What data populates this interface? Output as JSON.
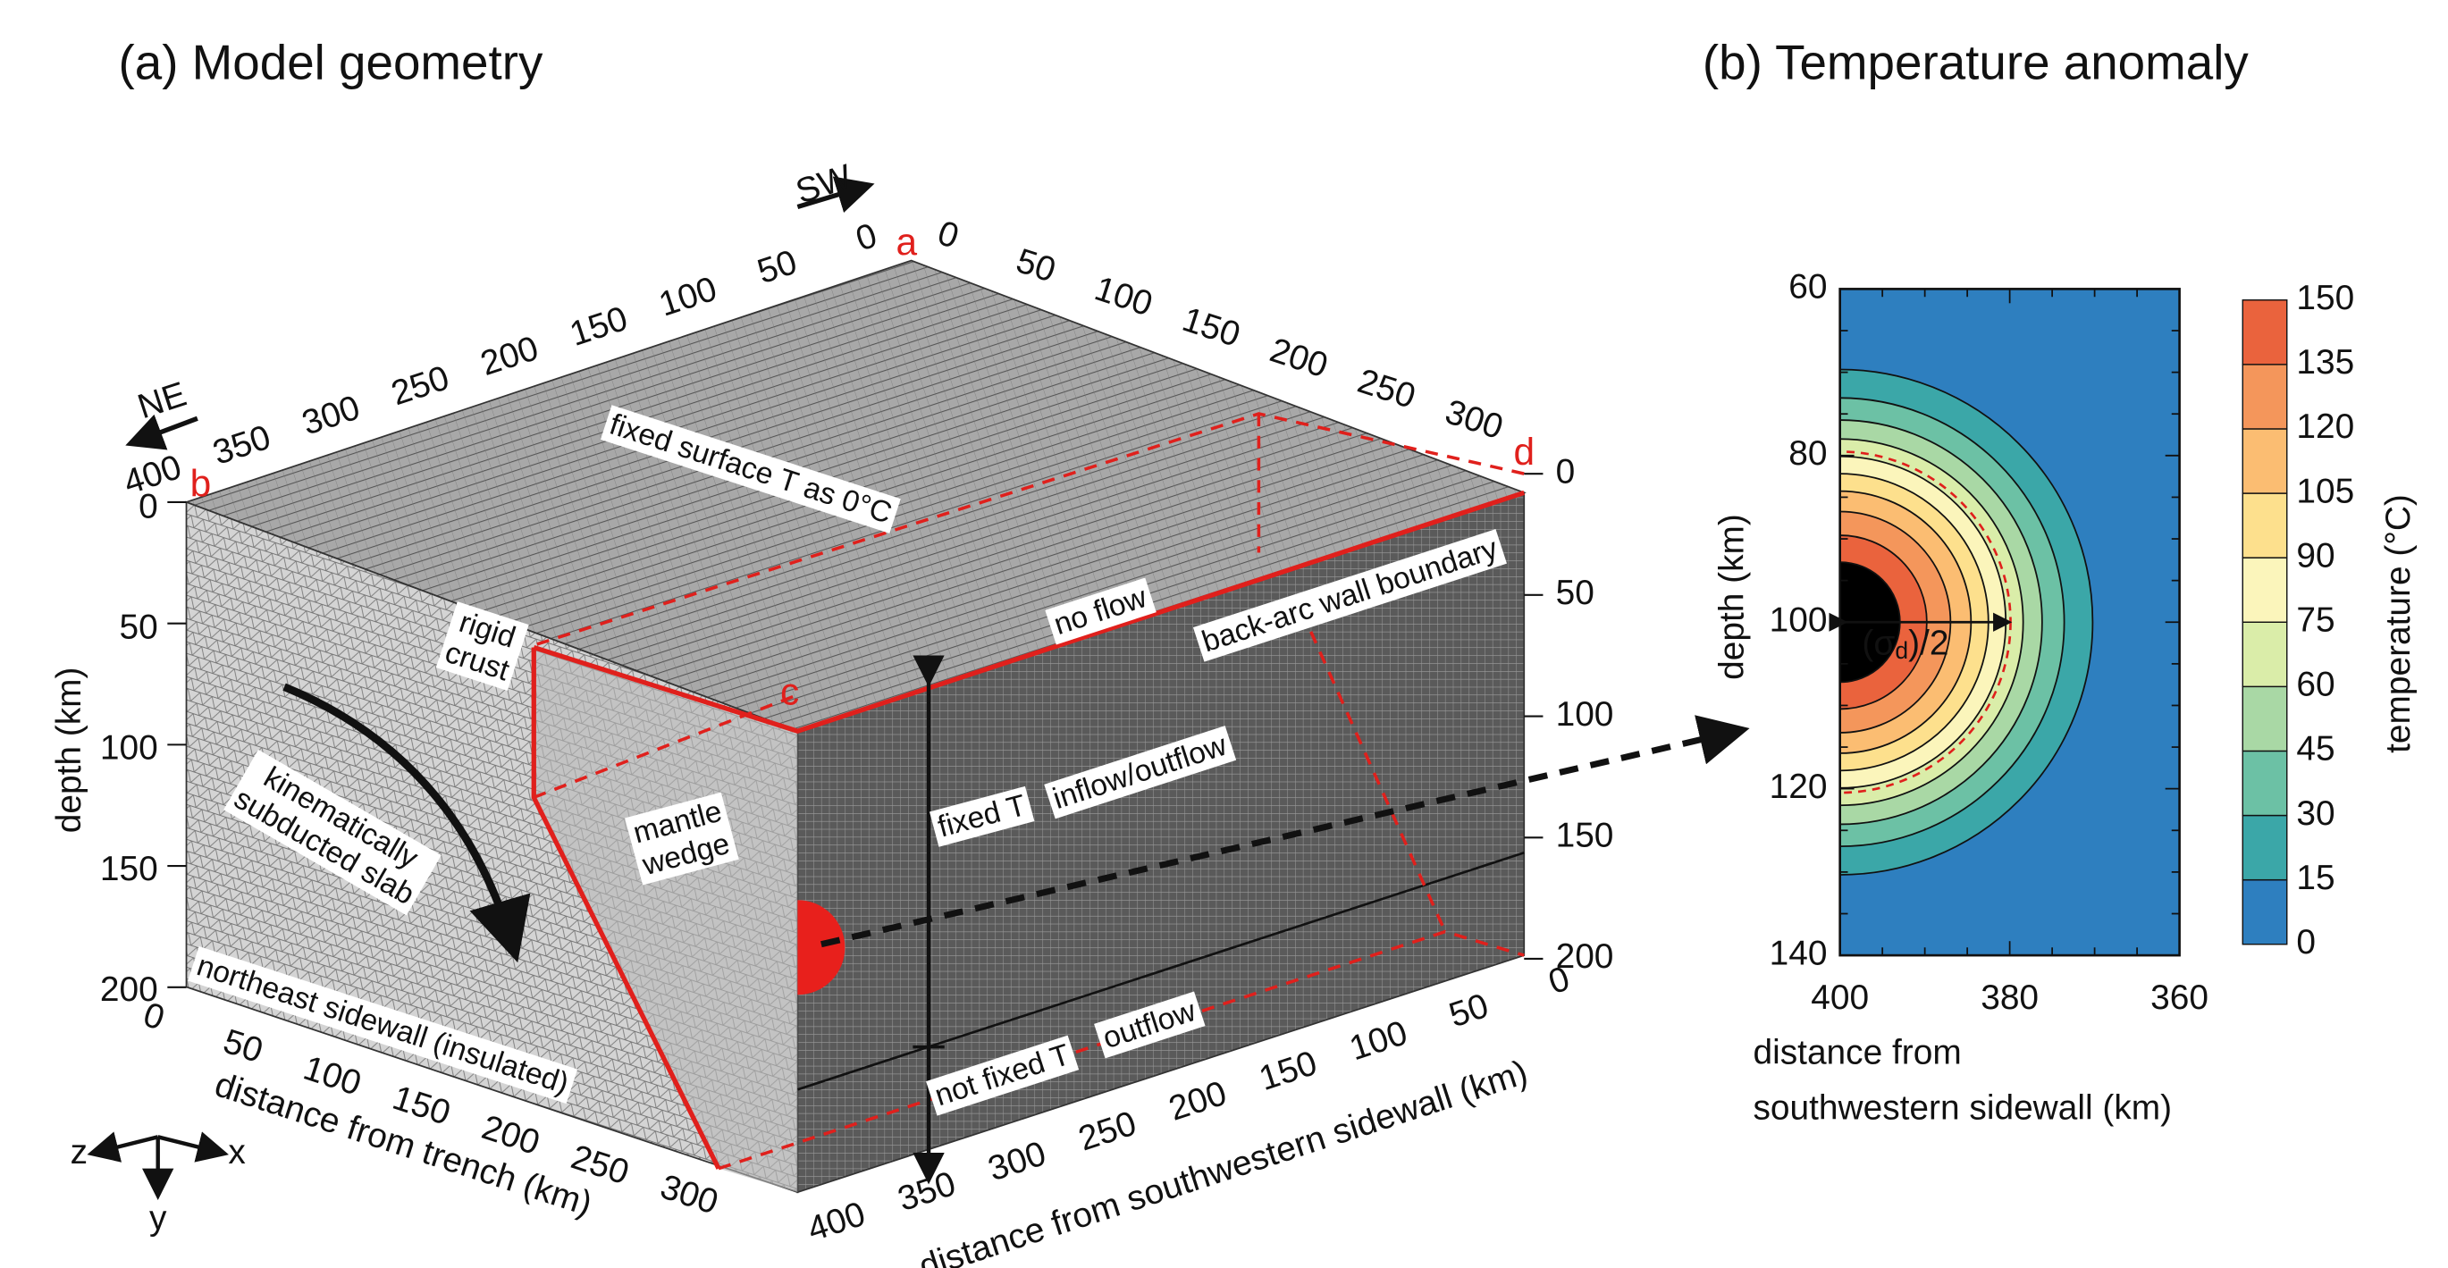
{
  "panel_a": {
    "title": "(a) Model geometry",
    "directions": {
      "sw": "SW",
      "ne": "NE"
    },
    "corners": {
      "a": "a",
      "b": "b",
      "c": "c",
      "d": "d"
    },
    "top_ticks_ne": [
      "400",
      "350",
      "300",
      "250",
      "200",
      "150",
      "100",
      "50",
      "0"
    ],
    "top_ticks_sw": [
      "0",
      "50",
      "100",
      "150",
      "200",
      "250",
      "300"
    ],
    "depth_ticks_left": [
      "0",
      "50",
      "100",
      "150",
      "200"
    ],
    "depth_ticks_right": [
      "0",
      "50",
      "100",
      "150",
      "200"
    ],
    "trench_ticks": [
      "0",
      "50",
      "100",
      "150",
      "200",
      "250",
      "300"
    ],
    "sidewall_ticks": [
      "400",
      "350",
      "300",
      "250",
      "200",
      "150",
      "100",
      "50",
      "0"
    ],
    "axis_labels": {
      "depth": "depth (km)",
      "trench": "distance from trench (km)",
      "sidewall": "distance from southwestern sidewall (km)"
    },
    "annotations": [
      [
        "fixed surface T as 0°C"
      ],
      [
        "no flow"
      ],
      [
        "back-arc wall boundary"
      ],
      [
        "rigid",
        "crust"
      ],
      [
        "kinematically",
        "subducted slab"
      ],
      [
        "mantle",
        "wedge"
      ],
      [
        "fixed T"
      ],
      [
        "inflow/outflow"
      ],
      [
        "not fixed T"
      ],
      [
        "outflow"
      ],
      [
        "northeast sidewall (insulated)"
      ]
    ],
    "axes_icon": {
      "z": "z",
      "x": "x",
      "y": "y"
    }
  },
  "panel_b": {
    "title": "(b) Temperature anomaly",
    "y_label": "depth (km)",
    "x_label": [
      "distance from",
      "southwestern sidewall (km)"
    ],
    "yticks": [
      "60",
      "80",
      "100",
      "120",
      "140"
    ],
    "xticks": [
      "400",
      "380",
      "360"
    ],
    "annotation": {
      "open": "(σ",
      "sub": "d",
      "close": ")/2"
    },
    "colorbar_label": "temperature (°C)",
    "colorbar_ticks": [
      "150",
      "135",
      "120",
      "105",
      "90",
      "75",
      "60",
      "45",
      "30",
      "15",
      "0"
    ],
    "colors": [
      "#2e7fbf",
      "#3ba7a8",
      "#6cc1a5",
      "#a9d8a5",
      "#daeda9",
      "#fbf5bb",
      "#fde08d",
      "#fbbd72",
      "#f4965b",
      "#ea633d"
    ]
  }
}
